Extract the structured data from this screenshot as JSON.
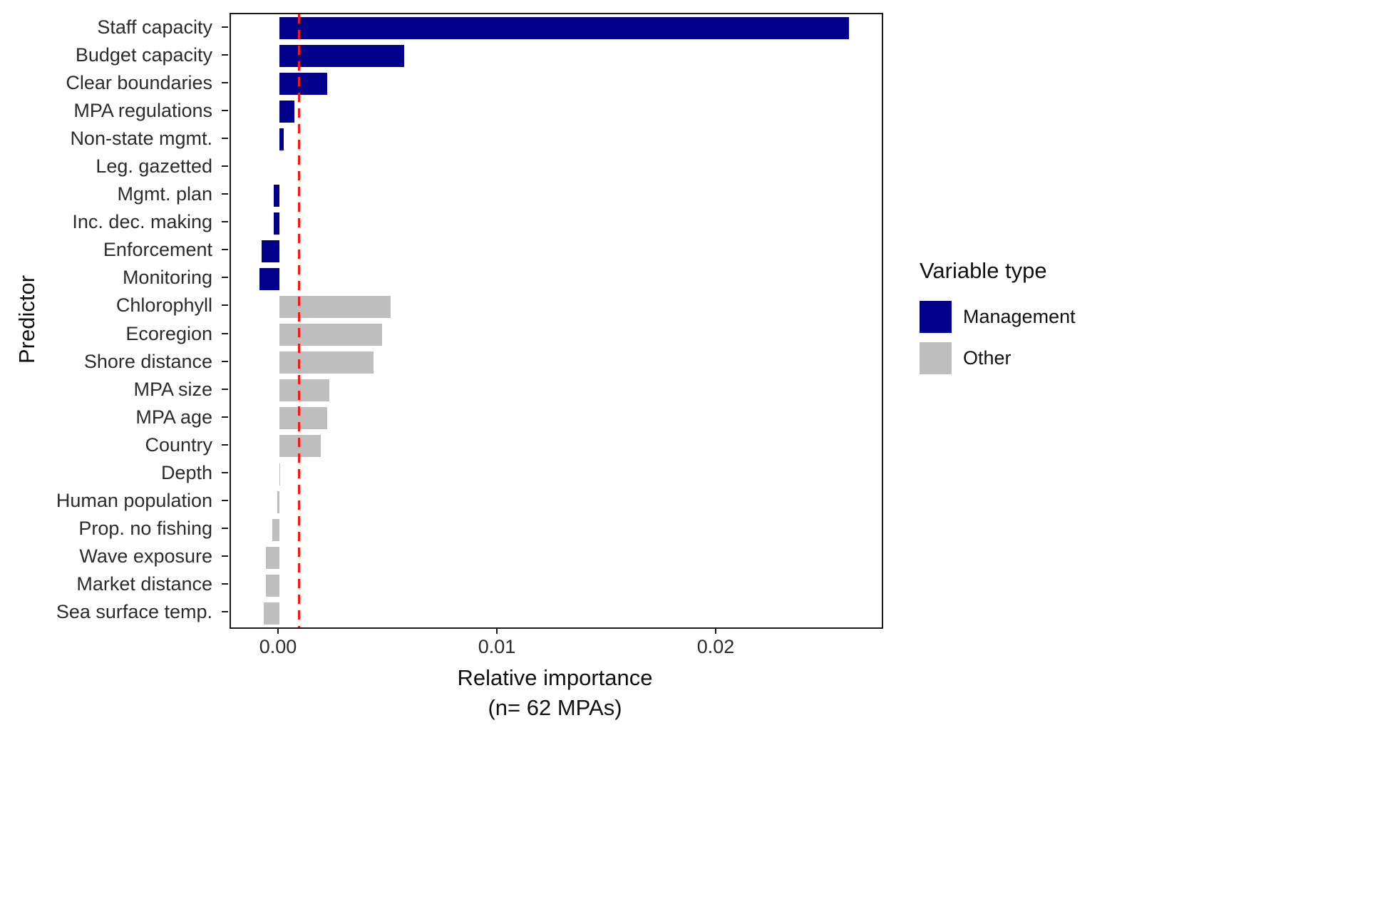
{
  "chart_data": {
    "type": "bar",
    "orientation": "horizontal",
    "title": "",
    "xlabel": "Relative importance",
    "xlabel_sub": "(n= 62 MPAs)",
    "ylabel": "Predictor",
    "xlim": [
      -0.0022,
      0.0275
    ],
    "x_ticks": {
      "values": [
        0,
        0.01,
        0.02
      ],
      "labels": [
        "0.00",
        "0.01",
        "0.02"
      ]
    },
    "grid": false,
    "panel_border": true,
    "reference_line": {
      "orientation": "vertical",
      "value": 0.0009,
      "color": "#FF1510",
      "style": "dashed"
    },
    "categories": [
      "Staff capacity",
      "Budget capacity",
      "Clear boundaries",
      "MPA regulations",
      "Non-state mgmt.",
      "Leg. gazetted",
      "Mgmt. plan",
      "Inc. dec. making",
      "Enforcement",
      "Monitoring",
      "Chlorophyll",
      "Ecoregion",
      "Shore distance",
      "MPA size",
      "MPA age",
      "Country",
      "Depth",
      "Human population",
      "Prop. no fishing",
      "Wave exposure",
      "Market distance",
      "Sea surface temp."
    ],
    "values": [
      0.026,
      0.0057,
      0.0022,
      0.0007,
      0.0002,
      0.0,
      -0.00025,
      -0.00025,
      -0.0008,
      -0.0009,
      0.0051,
      0.0047,
      0.0043,
      0.0023,
      0.0022,
      0.0019,
      4e-05,
      -0.0001,
      -0.0003,
      -0.0006,
      -0.0006,
      -0.0007
    ],
    "types": [
      "Management",
      "Management",
      "Management",
      "Management",
      "Management",
      "Management",
      "Management",
      "Management",
      "Management",
      "Management",
      "Other",
      "Other",
      "Other",
      "Other",
      "Other",
      "Other",
      "Other",
      "Other",
      "Other",
      "Other",
      "Other",
      "Other"
    ],
    "colors": {
      "management": "#00008B",
      "other": "#BEBEBE"
    },
    "legend": {
      "title": "Variable type",
      "position": "right",
      "items": [
        {
          "label": "Management",
          "color_key": "management"
        },
        {
          "label": "Other",
          "color_key": "other"
        }
      ]
    }
  }
}
